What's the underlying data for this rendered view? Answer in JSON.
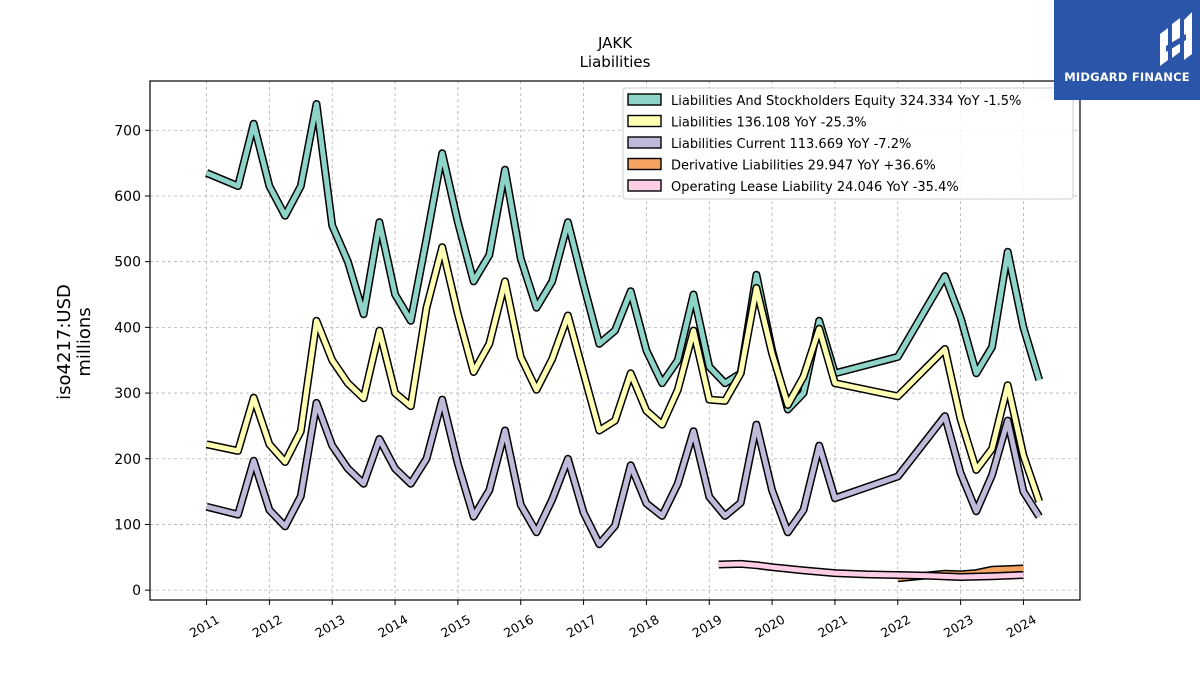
{
  "brand": {
    "name": "MIDGARD FINANCE",
    "bg_color": "#2a55a8"
  },
  "chart_data": {
    "type": "line",
    "title": "JAKK",
    "subtitle": "Liabilities",
    "ylabel_line1": "iso4217:USD",
    "ylabel_line2": "millions",
    "xlabel": "",
    "ylim": [
      -15,
      775
    ],
    "xlim": [
      2010.1,
      2024.9
    ],
    "yticks": [
      0,
      100,
      200,
      300,
      400,
      500,
      600,
      700
    ],
    "xticks": [
      "2011",
      "2012",
      "2013",
      "2014",
      "2015",
      "2016",
      "2017",
      "2018",
      "2019",
      "2020",
      "2021",
      "2022",
      "2023",
      "2024"
    ],
    "grid": true,
    "legend_position": "top-right",
    "series": [
      {
        "name": "Liabilities And Stockholders Equity",
        "legend": "Liabilities And Stockholders Equity  324.334 YoY -1.5%",
        "color": "#8dd3c7",
        "points": [
          [
            2011.0,
            635
          ],
          [
            2011.5,
            615
          ],
          [
            2011.75,
            710
          ],
          [
            2012.0,
            615
          ],
          [
            2012.25,
            570
          ],
          [
            2012.5,
            615
          ],
          [
            2012.75,
            740
          ],
          [
            2013.0,
            555
          ],
          [
            2013.25,
            500
          ],
          [
            2013.5,
            420
          ],
          [
            2013.75,
            560
          ],
          [
            2014.0,
            450
          ],
          [
            2014.25,
            410
          ],
          [
            2014.5,
            535
          ],
          [
            2014.75,
            665
          ],
          [
            2015.0,
            560
          ],
          [
            2015.25,
            470
          ],
          [
            2015.5,
            510
          ],
          [
            2015.75,
            640
          ],
          [
            2016.0,
            505
          ],
          [
            2016.25,
            430
          ],
          [
            2016.5,
            470
          ],
          [
            2016.75,
            560
          ],
          [
            2017.0,
            465
          ],
          [
            2017.25,
            375
          ],
          [
            2017.5,
            395
          ],
          [
            2017.75,
            455
          ],
          [
            2018.0,
            365
          ],
          [
            2018.25,
            315
          ],
          [
            2018.5,
            350
          ],
          [
            2018.75,
            450
          ],
          [
            2019.0,
            340
          ],
          [
            2019.25,
            315
          ],
          [
            2019.5,
            330
          ],
          [
            2019.75,
            480
          ],
          [
            2020.0,
            365
          ],
          [
            2020.25,
            275
          ],
          [
            2020.5,
            300
          ],
          [
            2020.75,
            410
          ],
          [
            2021.0,
            330
          ],
          [
            2022.0,
            355
          ],
          [
            2022.75,
            478
          ],
          [
            2023.0,
            415
          ],
          [
            2023.25,
            330
          ],
          [
            2023.5,
            370
          ],
          [
            2023.75,
            515
          ],
          [
            2024.0,
            400
          ],
          [
            2024.25,
            320
          ]
        ]
      },
      {
        "name": "Liabilities",
        "legend": "Liabilities  136.108 YoY -25.3%",
        "color": "#ffffb3",
        "points": [
          [
            2011.0,
            222
          ],
          [
            2011.5,
            212
          ],
          [
            2011.75,
            293
          ],
          [
            2012.0,
            222
          ],
          [
            2012.25,
            195
          ],
          [
            2012.5,
            242
          ],
          [
            2012.75,
            410
          ],
          [
            2013.0,
            350
          ],
          [
            2013.25,
            315
          ],
          [
            2013.5,
            292
          ],
          [
            2013.75,
            395
          ],
          [
            2014.0,
            300
          ],
          [
            2014.25,
            280
          ],
          [
            2014.5,
            430
          ],
          [
            2014.75,
            522
          ],
          [
            2015.0,
            420
          ],
          [
            2015.25,
            332
          ],
          [
            2015.5,
            375
          ],
          [
            2015.75,
            470
          ],
          [
            2016.0,
            355
          ],
          [
            2016.25,
            305
          ],
          [
            2016.5,
            352
          ],
          [
            2016.75,
            418
          ],
          [
            2017.0,
            330
          ],
          [
            2017.25,
            243
          ],
          [
            2017.5,
            258
          ],
          [
            2017.75,
            330
          ],
          [
            2018.0,
            273
          ],
          [
            2018.25,
            252
          ],
          [
            2018.5,
            305
          ],
          [
            2018.75,
            395
          ],
          [
            2019.0,
            290
          ],
          [
            2019.25,
            288
          ],
          [
            2019.5,
            330
          ],
          [
            2019.75,
            460
          ],
          [
            2020.0,
            360
          ],
          [
            2020.25,
            282
          ],
          [
            2020.5,
            325
          ],
          [
            2020.75,
            398
          ],
          [
            2021.0,
            315
          ],
          [
            2022.0,
            295
          ],
          [
            2022.75,
            367
          ],
          [
            2023.0,
            260
          ],
          [
            2023.25,
            183
          ],
          [
            2023.5,
            215
          ],
          [
            2023.75,
            312
          ],
          [
            2024.0,
            205
          ],
          [
            2024.25,
            135
          ]
        ]
      },
      {
        "name": "Liabilities Current",
        "legend": "Liabilities Current  113.669 YoY -7.2%",
        "color": "#bebada",
        "points": [
          [
            2011.0,
            127
          ],
          [
            2011.5,
            115
          ],
          [
            2011.75,
            197
          ],
          [
            2012.0,
            122
          ],
          [
            2012.25,
            97
          ],
          [
            2012.5,
            143
          ],
          [
            2012.75,
            285
          ],
          [
            2013.0,
            220
          ],
          [
            2013.25,
            185
          ],
          [
            2013.5,
            162
          ],
          [
            2013.75,
            230
          ],
          [
            2014.0,
            185
          ],
          [
            2014.25,
            162
          ],
          [
            2014.5,
            200
          ],
          [
            2014.75,
            290
          ],
          [
            2015.0,
            192
          ],
          [
            2015.25,
            112
          ],
          [
            2015.5,
            152
          ],
          [
            2015.75,
            243
          ],
          [
            2016.0,
            130
          ],
          [
            2016.25,
            88
          ],
          [
            2016.5,
            138
          ],
          [
            2016.75,
            200
          ],
          [
            2017.0,
            118
          ],
          [
            2017.25,
            70
          ],
          [
            2017.5,
            98
          ],
          [
            2017.75,
            190
          ],
          [
            2018.0,
            132
          ],
          [
            2018.25,
            113
          ],
          [
            2018.5,
            162
          ],
          [
            2018.75,
            242
          ],
          [
            2019.0,
            142
          ],
          [
            2019.25,
            113
          ],
          [
            2019.5,
            133
          ],
          [
            2019.75,
            252
          ],
          [
            2020.0,
            152
          ],
          [
            2020.25,
            88
          ],
          [
            2020.5,
            122
          ],
          [
            2020.75,
            220
          ],
          [
            2021.0,
            140
          ],
          [
            2022.0,
            173
          ],
          [
            2022.75,
            265
          ],
          [
            2023.0,
            178
          ],
          [
            2023.25,
            120
          ],
          [
            2023.5,
            175
          ],
          [
            2023.75,
            258
          ],
          [
            2024.0,
            150
          ],
          [
            2024.25,
            112
          ]
        ]
      },
      {
        "name": "Derivative Liabilities",
        "legend": "Derivative Liabilities  29.947 YoY +36.6%",
        "color": "#f4a460",
        "points": [
          [
            2022.0,
            18
          ],
          [
            2022.75,
            25
          ],
          [
            2023.0,
            24
          ],
          [
            2023.25,
            26
          ],
          [
            2023.5,
            31
          ],
          [
            2023.75,
            32
          ],
          [
            2024.0,
            33
          ]
        ]
      },
      {
        "name": "Operating Lease Liability",
        "legend": "Operating Lease Liability  24.046 YoY -35.4%",
        "color": "#fccde5",
        "points": [
          [
            2019.15,
            39
          ],
          [
            2019.5,
            40
          ],
          [
            2019.75,
            38
          ],
          [
            2020.0,
            35
          ],
          [
            2020.5,
            30
          ],
          [
            2021.0,
            26
          ],
          [
            2021.5,
            24
          ],
          [
            2022.0,
            23
          ],
          [
            2022.5,
            22
          ],
          [
            2023.0,
            20
          ],
          [
            2023.5,
            21
          ],
          [
            2024.0,
            23
          ]
        ]
      }
    ]
  }
}
